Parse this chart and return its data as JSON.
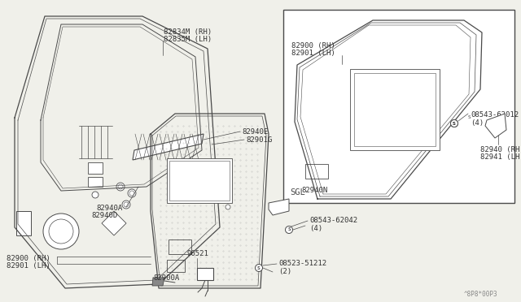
{
  "bg_color": "#f0f0ea",
  "line_color": "#4a4a4a",
  "text_color": "#333333",
  "diagram_code": "^8P8*00P3",
  "labels": {
    "82834M_RH": "82834M (RH)",
    "82835M_LH": "82835M (LH)",
    "82940E": "82940E",
    "82901G": "82901G",
    "82940N": "82940N",
    "82940A": "82940A",
    "82940D": "82940D",
    "82900_RH": "82900 (RH)",
    "82901_LH": "82901 (LH)",
    "82900A": "82900A",
    "96521": "96521",
    "08543_62042": "08543-62042\n(4)",
    "08523_51212": "08523-51212\n(2)",
    "inset_82900_RH": "82900 (RH)",
    "inset_82901_LH": "82901 (LH)",
    "inset_08543_62012": "08543-62012\n(4)",
    "inset_82940_RH": "82940 (RH)",
    "inset_82941_LH": "82941 (LH)",
    "inset_SGL": "SGL"
  },
  "font_size": 6.5
}
